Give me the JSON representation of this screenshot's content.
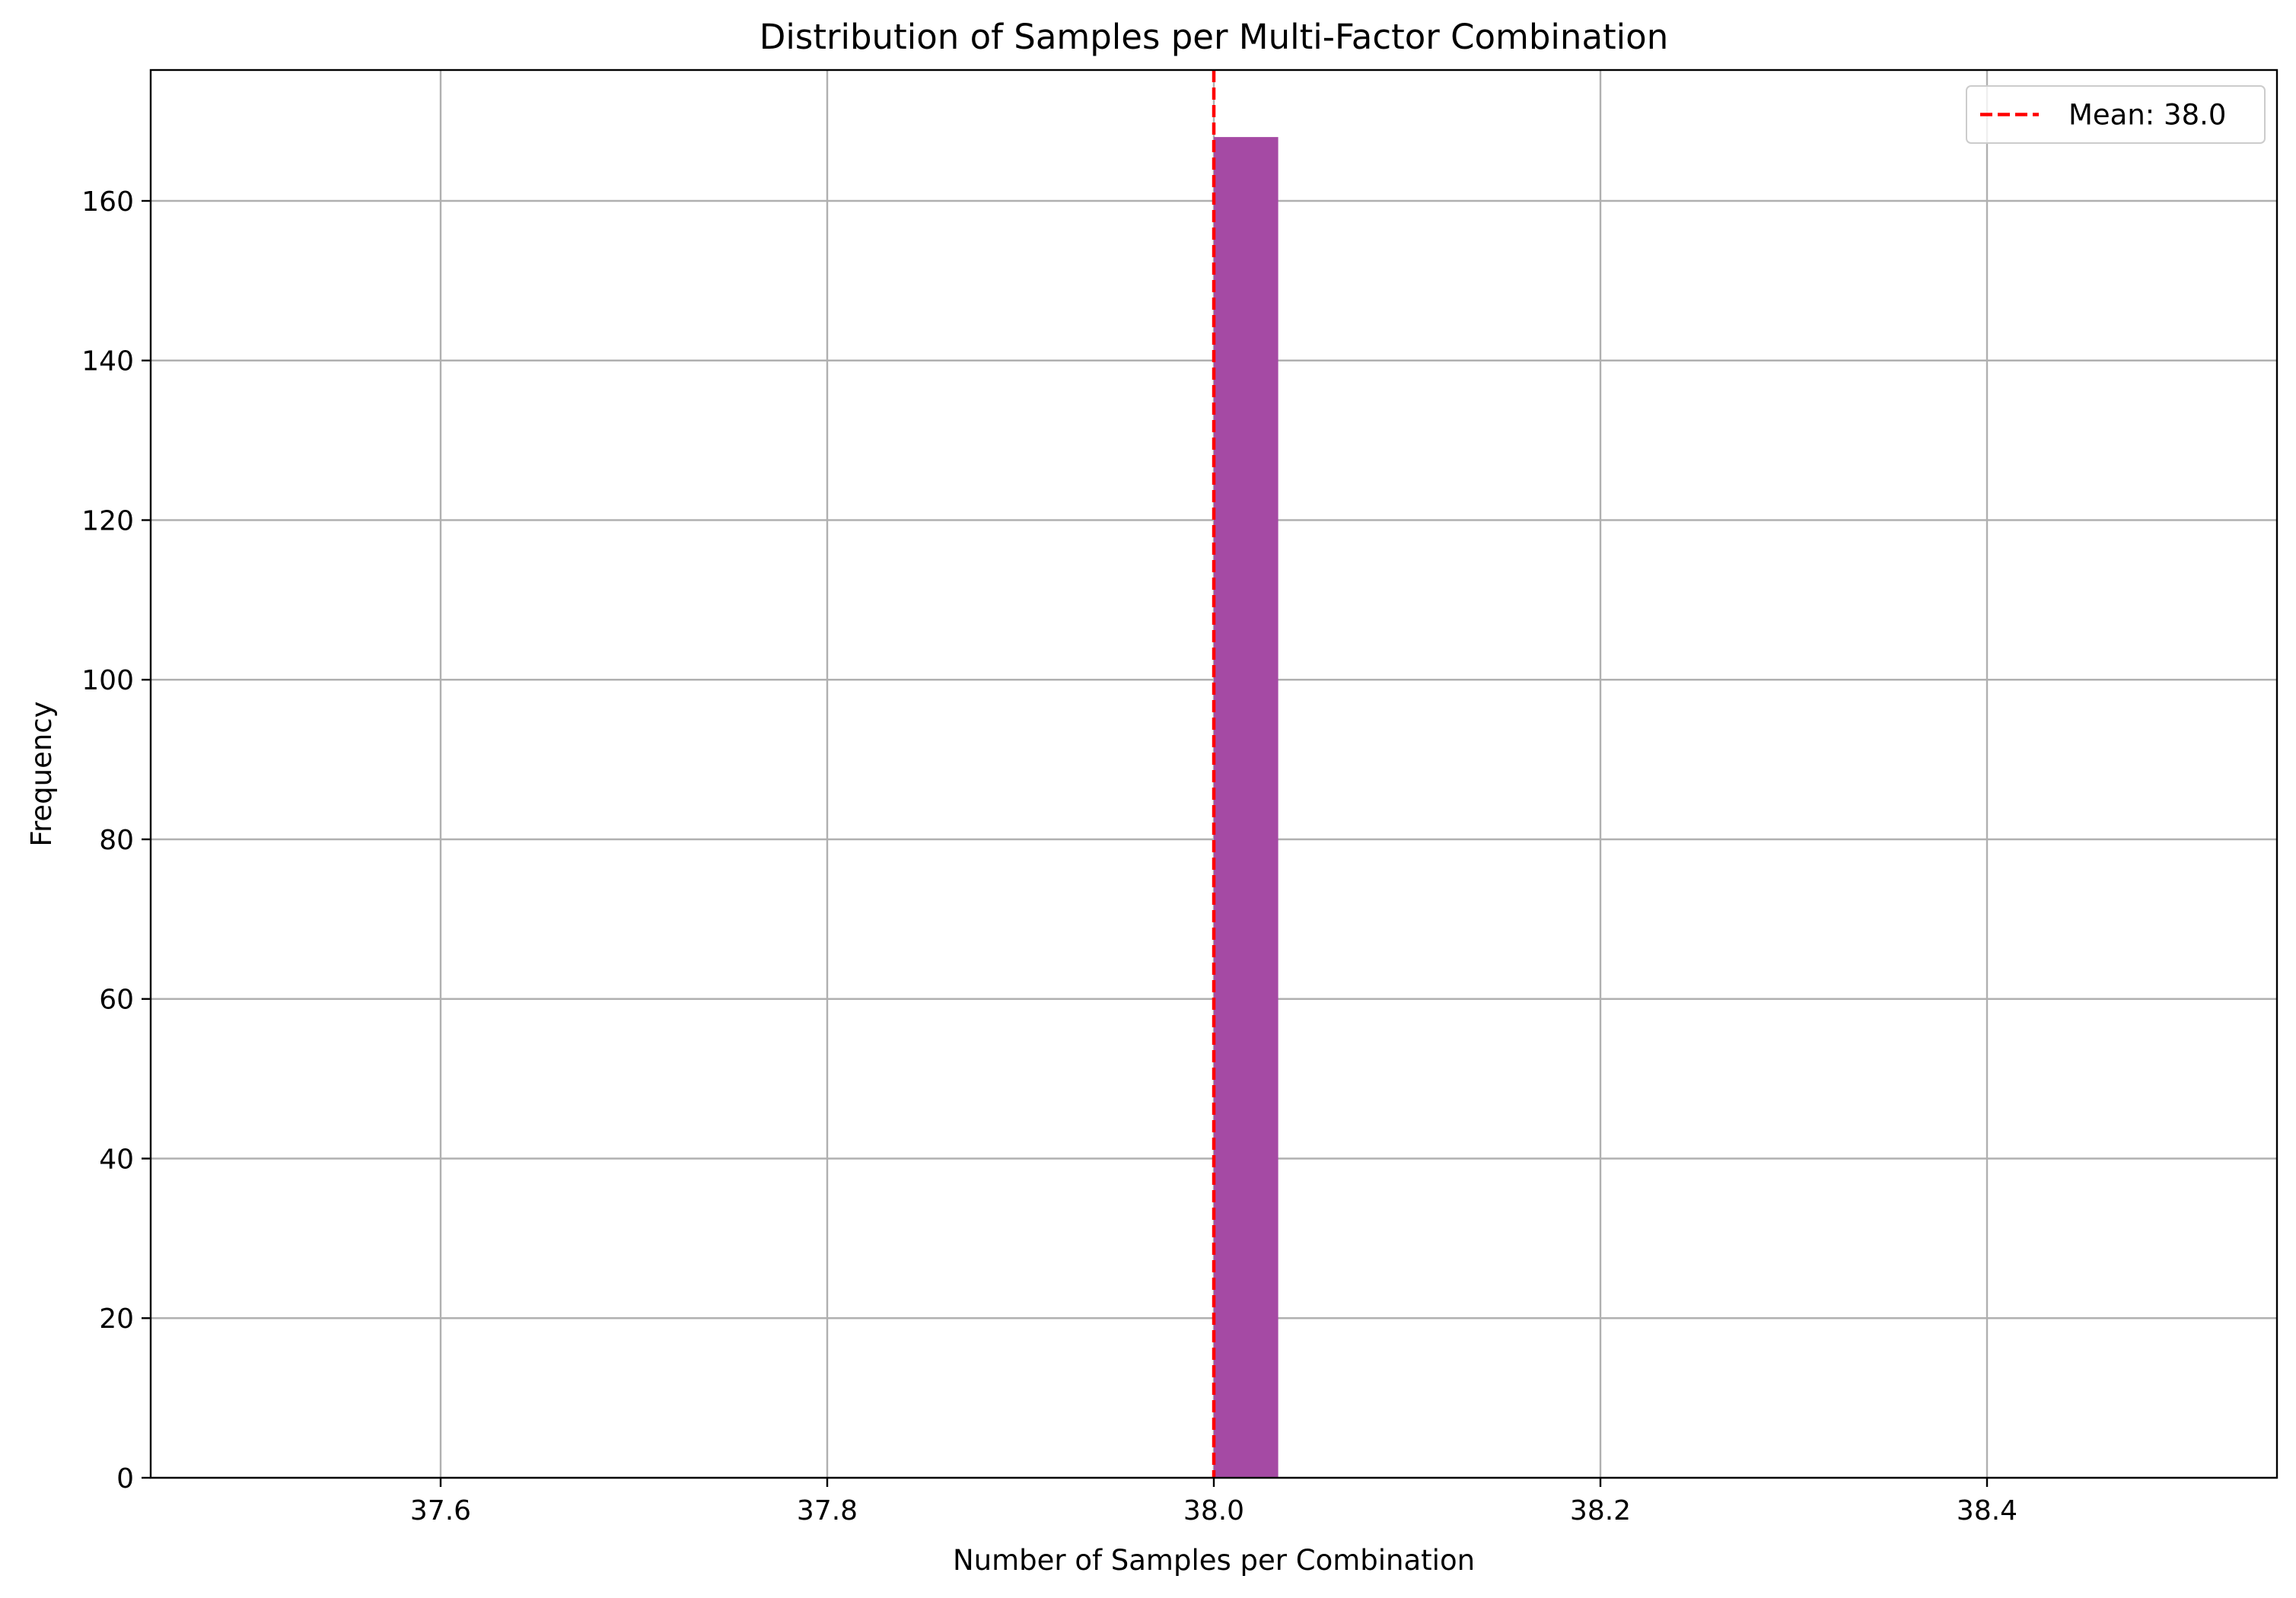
{
  "chart_data": {
    "type": "bar",
    "title": "Distribution of Samples per Multi-Factor Combination",
    "xlabel": "Number of Samples per Combination",
    "ylabel": "Frequency",
    "xlim": [
      37.45,
      38.55
    ],
    "ylim": [
      0,
      176.4
    ],
    "xticks": [
      37.6,
      37.8,
      38.0,
      38.2,
      38.4
    ],
    "xtick_labels": [
      "37.6",
      "37.8",
      "38.0",
      "38.2",
      "38.4"
    ],
    "yticks": [
      0,
      20,
      40,
      60,
      80,
      100,
      120,
      140,
      160
    ],
    "ytick_labels": [
      "0",
      "20",
      "40",
      "60",
      "80",
      "100",
      "120",
      "140",
      "160"
    ],
    "bars": [
      {
        "x_start": 38.0,
        "x_end": 38.0333,
        "value": 168
      }
    ],
    "bar_color": "#A54AA4",
    "mean_line": {
      "x": 38.0,
      "color": "#ff0000",
      "style": "dashed"
    },
    "grid": true,
    "legend": {
      "placement": "top-right",
      "entries": [
        {
          "label": "Mean: 38.0",
          "color": "#ff0000",
          "style": "dashed"
        }
      ]
    }
  }
}
